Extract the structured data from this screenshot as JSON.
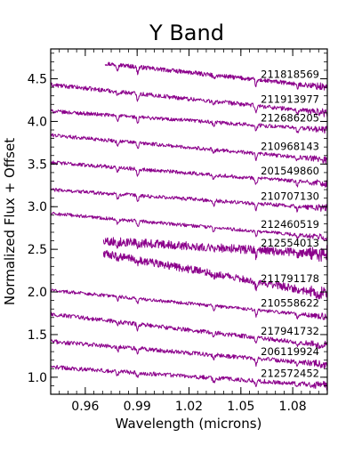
{
  "chart_data": {
    "type": "line",
    "title": "Y Band",
    "xlabel": "Wavelength (microns)",
    "ylabel": "Normalized Flux + Offset",
    "xlim": [
      0.94,
      1.1
    ],
    "ylim": [
      0.8,
      4.85
    ],
    "xticks": [
      0.96,
      0.99,
      1.02,
      1.05,
      1.08
    ],
    "xtick_labels": [
      "0.96",
      "0.99",
      "1.02",
      "1.05",
      "1.08"
    ],
    "yticks": [
      1.0,
      1.5,
      2.0,
      2.5,
      3.0,
      3.5,
      4.0,
      4.5
    ],
    "ytick_labels": [
      "1.0",
      "1.5",
      "2.0",
      "2.5",
      "3.0",
      "3.5",
      "4.0",
      "4.5"
    ],
    "grid": false,
    "line_color": "#8b008b",
    "series": [
      {
        "name": "211818569",
        "x_start": 0.9715,
        "y_start": 4.68,
        "y_end": 4.4,
        "noise": 0.025
      },
      {
        "name": "211913977",
        "x_start": 0.94,
        "y_start": 4.43,
        "y_end": 4.1,
        "noise": 0.025
      },
      {
        "name": "212686205",
        "x_start": 0.94,
        "y_start": 4.12,
        "y_end": 3.9,
        "noise": 0.022
      },
      {
        "name": "210968143",
        "x_start": 0.94,
        "y_start": 3.84,
        "y_end": 3.55,
        "noise": 0.022
      },
      {
        "name": "201549860",
        "x_start": 0.94,
        "y_start": 3.52,
        "y_end": 3.27,
        "noise": 0.022
      },
      {
        "name": "210707130",
        "x_start": 0.94,
        "y_start": 3.2,
        "y_end": 2.98,
        "noise": 0.022
      },
      {
        "name": "212460519",
        "x_start": 0.94,
        "y_start": 2.92,
        "y_end": 2.64,
        "noise": 0.02
      },
      {
        "name": "212554013",
        "x_start": 0.9705,
        "y_start": 2.6,
        "y_end": 2.44,
        "noise": 0.05
      },
      {
        "name": "211791178",
        "x_start": 0.9705,
        "y_start": 2.45,
        "y_end": 1.97,
        "noise": 0.045
      },
      {
        "name": "210558622",
        "x_start": 0.94,
        "y_start": 2.02,
        "y_end": 1.71,
        "noise": 0.02
      },
      {
        "name": "217941732",
        "x_start": 0.94,
        "y_start": 1.74,
        "y_end": 1.37,
        "noise": 0.025
      },
      {
        "name": "206119924",
        "x_start": 0.94,
        "y_start": 1.42,
        "y_end": 1.15,
        "noise": 0.025
      },
      {
        "name": "212572452",
        "x_start": 0.94,
        "y_start": 1.12,
        "y_end": 0.9,
        "noise": 0.025
      }
    ],
    "absorption_lines": [
      0.9787,
      0.9903,
      1.0343,
      1.0588,
      1.0827
    ]
  }
}
